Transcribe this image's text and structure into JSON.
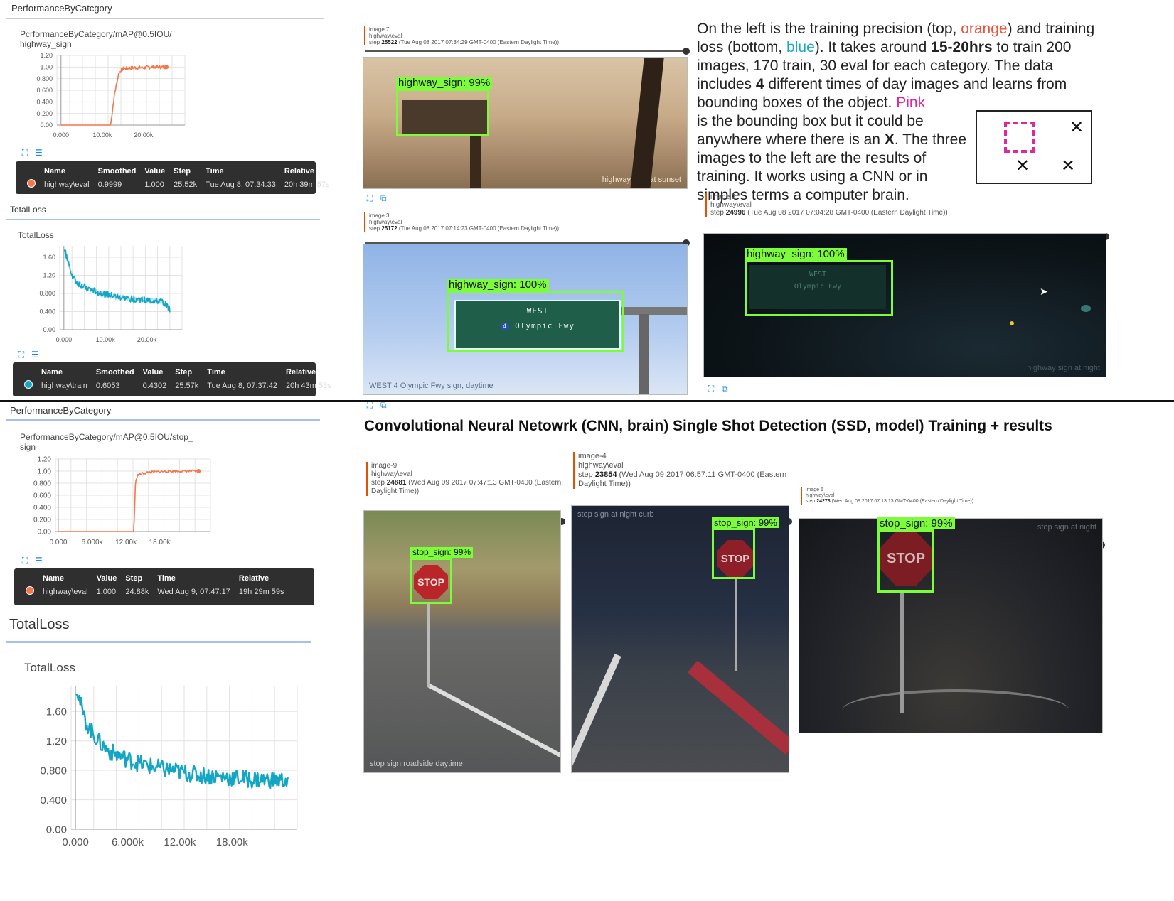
{
  "top_left": {
    "section_title": "PerformanceByCatcgory",
    "map_chart": {
      "title_line1": "PcrformanceByCategory/mAP@0.5IOU/",
      "title_line2": "highway_sign",
      "y_ticks": [
        "1.20",
        "1.00",
        "0.800",
        "0.600",
        "0.400",
        "0.200",
        "0.00"
      ],
      "x_ticks": [
        "0.000",
        "10.00k",
        "20.00k"
      ]
    },
    "map_tooltip": {
      "headers": [
        "Name",
        "Smoothed",
        "Value",
        "Step",
        "Time",
        "Relative"
      ],
      "row": [
        "highway\\eval",
        "0.9999",
        "1.000",
        "25.52k",
        "Tue Aug 8, 07:34:33",
        "20h 39m 57s"
      ]
    },
    "loss_section_title": "TotalLoss",
    "loss_chart": {
      "title": "TotalLoss",
      "y_ticks": [
        "1.60",
        "1.20",
        "0.800",
        "0.400",
        "0.00"
      ],
      "x_ticks": [
        "0.000",
        "10.00k",
        "20.00k"
      ]
    },
    "loss_tooltip": {
      "headers": [
        "Name",
        "Smoothed",
        "Value",
        "Step",
        "Time",
        "Relative"
      ],
      "row": [
        "highway\\train",
        "0.6053",
        "0.4302",
        "25.57k",
        "Tue Aug 8, 07:37:42",
        "20h 43m 58s"
      ]
    }
  },
  "bottom_left": {
    "section_title": "PerformanceByCategory",
    "map_chart": {
      "title_line1": "PerformanceByCategory/mAP@0.5IOU/stop_",
      "title_line2": "sign",
      "y_ticks": [
        "1.20",
        "1.00",
        "0.800",
        "0.600",
        "0.400",
        "0.200",
        "0.00"
      ],
      "x_ticks": [
        "0.000",
        "6.000k",
        "12.00k",
        "18.00k"
      ]
    },
    "map_tooltip": {
      "headers": [
        "Name",
        "Value",
        "Step",
        "Time",
        "Relative"
      ],
      "row": [
        "highway\\eval",
        "1.000",
        "24.88k",
        "Wed Aug 9, 07:47:17",
        "19h 29m 59s"
      ]
    },
    "loss_section_title": "TotalLoss",
    "loss_chart": {
      "title": "TotalLoss",
      "y_ticks": [
        "1.60",
        "1.20",
        "0.800",
        "0.400",
        "0.00"
      ],
      "x_ticks": [
        "0.000",
        "6.000k",
        "12.00k",
        "18.00k"
      ]
    }
  },
  "images": {
    "image7": {
      "name": "image 7",
      "run": "highway\\eval",
      "step_prefix": "step",
      "step": "25522",
      "time": "(Tue Aug 08 2017 07:34:29 GMT-0400 (Eastern Daylight Time))",
      "label": "highway_sign: 99%",
      "photo_alt": "highway sign at sunset"
    },
    "image3": {
      "name": "image 3",
      "run": "highway\\eval",
      "step_prefix": "step",
      "step": "25172",
      "time": "(Tue Aug 08 2017 07:14:23 GMT-0400 (Eastern Daylight Time))",
      "label": "highway_sign: 100%",
      "photo_alt": "WEST 4 Olympic Fwy sign, daytime",
      "sign_line1": "WEST",
      "sign_shield": "4",
      "sign_line2": "Olympic Fwy"
    },
    "image2": {
      "name": "image 2",
      "run": "highway\\eval",
      "step_prefix": "step",
      "step": "24996",
      "time": "(Tue Aug 08 2017 07:04:28 GMT-0400 (Eastern Daylight Time))",
      "label": "highway_sign: 100%",
      "photo_alt": "highway sign at night",
      "sign_line1": "WEST",
      "sign_line2": "Olympic Fwy"
    },
    "image9": {
      "name": "image-9",
      "run": "highway\\eval",
      "step_prefix": "step",
      "step": "24881",
      "time": "(Wed Aug 09 2017 07:47:13 GMT-0400 (Eastern",
      "time2": "Daylight Time))",
      "label": "stop_sign: 99%",
      "photo_alt": "stop sign roadside daytime",
      "sign_text": "STOP"
    },
    "image4": {
      "name": "image-4",
      "run": "highway\\eval",
      "step_prefix": "step",
      "step": "23854",
      "time": "(Wed Aug 09 2017 06:57:11 GMT-0400 (Eastern",
      "time2": "Daylight Time))",
      "label": "stop_sign: 99%",
      "photo_alt": "stop sign at night curb",
      "sign_text": "STOP"
    },
    "image6": {
      "name": "image 6",
      "run": "highway\\eval",
      "step_prefix": "step",
      "step": "24278",
      "time": "(Wed Aug 09 2017 07:13:13 GMT-0400 (Eastern Daylight Time))",
      "label": "stop_sign: 99%",
      "photo_alt": "stop sign at night",
      "sign_text": "STOP"
    }
  },
  "description": {
    "p1_a": "On the left is the training precision (top, ",
    "p1_orange": "orange",
    "p1_b": ") and training loss (bottom, ",
    "p1_blue": "blue",
    "p1_c": "). It takes around ",
    "p1_bold": "15-20hrs",
    "p1_d": " to train 200 images, 170 train, 30 eval for each category. The data includes ",
    "p1_bold2": "4",
    "p1_e": " different times of day images and learns from bounding boxes of the object. ",
    "p1_pink": "Pink",
    "p1_f": " is the bounding box but it could be anywhere  where there is an ",
    "p1_boldx": "X",
    "p1_g": ". The three images to the left are the results of training. It works using a CNN or in simples terms a computer brain.",
    "legend_x": "✕"
  },
  "headline": "Convolutional Neural Netowrk (CNN, brain) Single Shot Detection (SSD, model) Training + results",
  "colors": {
    "orange_series": "#f4764a",
    "blue_series": "#12a6c4",
    "detection_box": "#7cfc3a",
    "pink_box": "#e0269b",
    "tooltip_bg": "#2f2f2f"
  },
  "chart_data": [
    {
      "type": "line",
      "title": "PcrformanceByCategory/mAP@0.5IOU/highway_sign",
      "x": [
        0,
        5000,
        10000,
        12000,
        13000,
        14000,
        15000,
        16000,
        18000,
        20000,
        22000,
        25520
      ],
      "y": [
        0,
        0,
        0,
        0,
        0.55,
        0.9,
        0.97,
        0.98,
        0.99,
        0.99,
        1.0,
        1.0
      ],
      "ylim": [
        0,
        1.2
      ],
      "xlim": [
        -1000,
        30000
      ]
    },
    {
      "type": "line",
      "title": "TotalLoss",
      "x": [
        100,
        1000,
        2000,
        3000,
        4000,
        6000,
        8000,
        10000,
        12000,
        14000,
        16000,
        18000,
        20000,
        22000,
        24000,
        25570
      ],
      "y": [
        1.8,
        1.5,
        1.2,
        1.05,
        0.98,
        0.9,
        0.83,
        0.78,
        0.74,
        0.7,
        0.68,
        0.67,
        0.65,
        0.63,
        0.61,
        0.45
      ],
      "ylim": [
        0,
        1.85
      ],
      "xlim": [
        -1000,
        28500
      ]
    },
    {
      "type": "line",
      "title": "PerformanceByCategory/mAP@0.5IOU/stop_sign",
      "x": [
        0,
        5000,
        10000,
        13400,
        13700,
        14000,
        15000,
        16000,
        18000,
        20000,
        22000,
        24880
      ],
      "y": [
        0,
        0,
        0,
        0,
        0.8,
        0.93,
        0.96,
        0.98,
        0.99,
        1.0,
        1.0,
        1.0
      ],
      "ylim": [
        0,
        1.2
      ],
      "xlim": [
        -500,
        27000
      ]
    },
    {
      "type": "line",
      "title": "TotalLoss",
      "x": [
        100,
        500,
        1000,
        2000,
        3000,
        4000,
        6000,
        8000,
        10000,
        12000,
        14000,
        16000,
        18000,
        20000,
        22000,
        24500
      ],
      "y": [
        1.95,
        1.75,
        1.5,
        1.3,
        1.15,
        1.05,
        0.95,
        0.87,
        0.82,
        0.78,
        0.74,
        0.72,
        0.7,
        0.68,
        0.67,
        0.66
      ],
      "ylim": [
        0,
        1.95
      ],
      "xlim": [
        -500,
        25500
      ]
    }
  ]
}
